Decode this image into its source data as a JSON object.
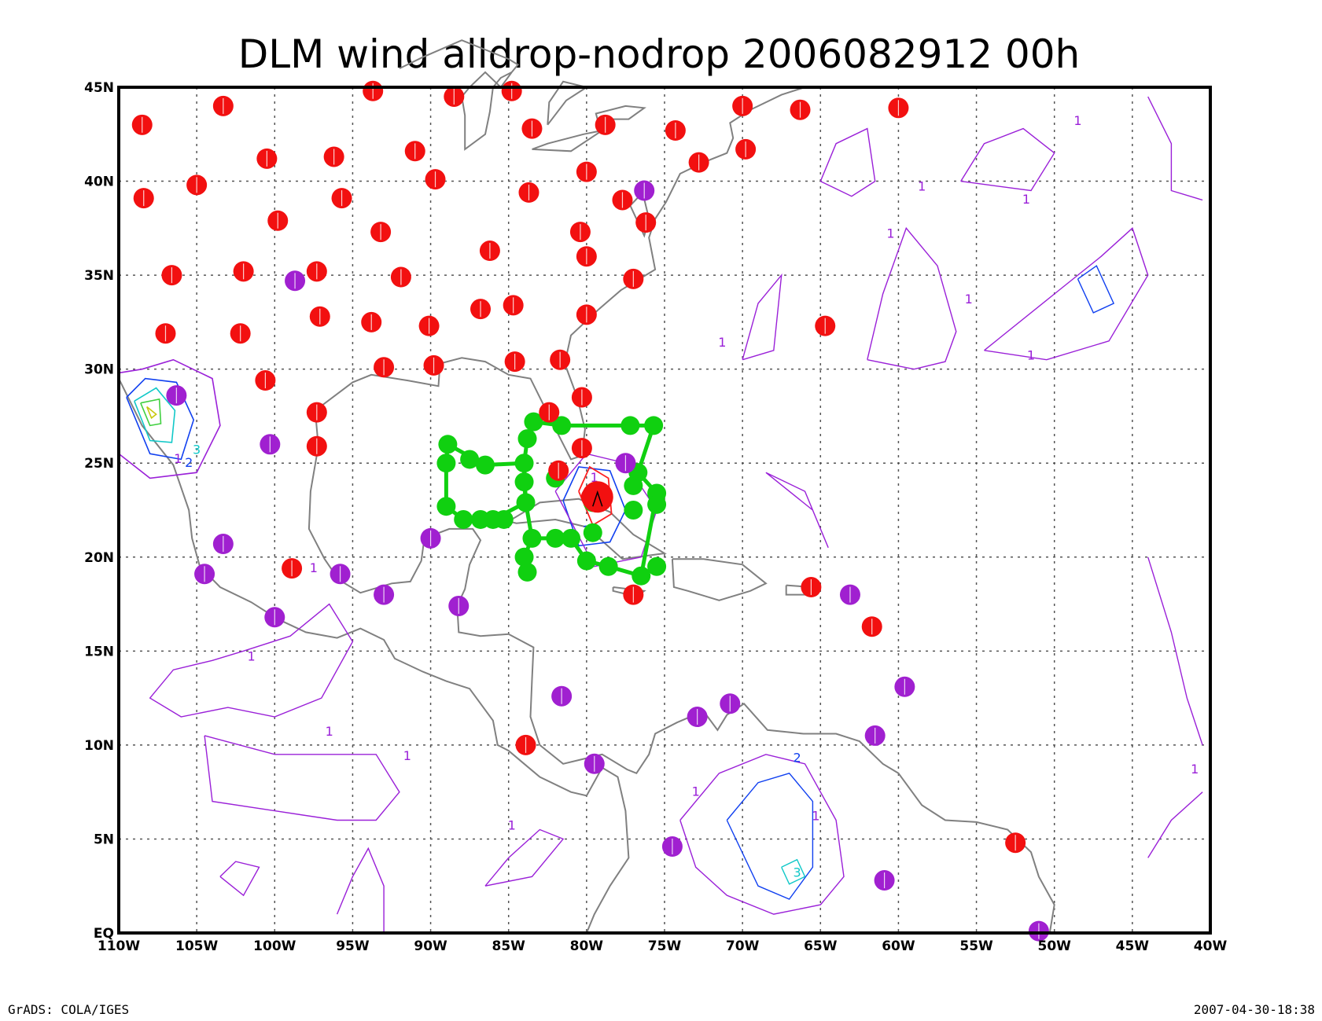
{
  "title": "DLM wind alldrop-nodrop 2006082912 00h",
  "footer_left": "GrADS: COLA/IGES",
  "footer_right": "2007-04-30-18:38",
  "map": {
    "lon_range": [
      -110,
      -40
    ],
    "lat_range": [
      0,
      45
    ],
    "lon_ticks": [
      {
        "v": -110,
        "label": "110W"
      },
      {
        "v": -105,
        "label": "105W"
      },
      {
        "v": -100,
        "label": "100W"
      },
      {
        "v": -95,
        "label": "95W"
      },
      {
        "v": -90,
        "label": "90W"
      },
      {
        "v": -85,
        "label": "85W"
      },
      {
        "v": -80,
        "label": "80W"
      },
      {
        "v": -75,
        "label": "75W"
      },
      {
        "v": -70,
        "label": "70W"
      },
      {
        "v": -65,
        "label": "65W"
      },
      {
        "v": -60,
        "label": "60W"
      },
      {
        "v": -55,
        "label": "55W"
      },
      {
        "v": -50,
        "label": "50W"
      },
      {
        "v": -45,
        "label": "45W"
      },
      {
        "v": -40,
        "label": "40W"
      }
    ],
    "lat_ticks": [
      {
        "v": 45,
        "label": "45N"
      },
      {
        "v": 40,
        "label": "40N"
      },
      {
        "v": 35,
        "label": "35N"
      },
      {
        "v": 30,
        "label": "30N"
      },
      {
        "v": 25,
        "label": "25N"
      },
      {
        "v": 20,
        "label": "20N"
      },
      {
        "v": 15,
        "label": "15N"
      },
      {
        "v": 10,
        "label": "10N"
      },
      {
        "v": 5,
        "label": "5N"
      },
      {
        "v": 0,
        "label": "EQ"
      }
    ],
    "colors": {
      "red_station": "#f21010",
      "purple_station": "#a020d0",
      "green_drop": "#10d010",
      "contour_1": "#9a20d8",
      "contour_2": "#1040f0",
      "contour_3": "#10c8c8",
      "contour_4": "#40d040",
      "contour_5": "#c8c810",
      "coast": "#808080",
      "grid": "#555555",
      "frame": "#000000"
    },
    "contour_labels": [
      {
        "lon": -106.2,
        "lat": 25.0,
        "text": "1"
      },
      {
        "lon": -105.0,
        "lat": 25.5,
        "text": "3"
      },
      {
        "lon": -105.5,
        "lat": 24.8,
        "text": "2"
      },
      {
        "lon": -58.5,
        "lat": 39.5,
        "text": "1"
      },
      {
        "lon": -60.5,
        "lat": 37.0,
        "text": "1"
      },
      {
        "lon": -55.5,
        "lat": 33.5,
        "text": "1"
      },
      {
        "lon": -51.5,
        "lat": 30.5,
        "text": "1"
      },
      {
        "lon": -51.8,
        "lat": 38.8,
        "text": "1"
      },
      {
        "lon": -84.8,
        "lat": 5.5,
        "text": "1"
      },
      {
        "lon": -91.5,
        "lat": 9.2,
        "text": "1"
      },
      {
        "lon": -101.5,
        "lat": 14.5,
        "text": "1"
      },
      {
        "lon": -96.5,
        "lat": 10.5,
        "text": "1"
      },
      {
        "lon": -65.3,
        "lat": 6.0,
        "text": "1"
      },
      {
        "lon": -66.5,
        "lat": 9.1,
        "text": "2"
      },
      {
        "lon": -73.0,
        "lat": 7.3,
        "text": "1"
      },
      {
        "lon": -97.5,
        "lat": 19.2,
        "text": "1"
      },
      {
        "lon": -80.0,
        "lat": 21.2,
        "text": "2"
      },
      {
        "lon": -41.0,
        "lat": 8.5,
        "text": "1"
      },
      {
        "lon": -66.5,
        "lat": 3.0,
        "text": "3"
      },
      {
        "lon": -79.5,
        "lat": 24.0,
        "text": "1"
      },
      {
        "lon": -48.5,
        "lat": 43.0,
        "text": "1"
      },
      {
        "lon": -71.3,
        "lat": 31.2,
        "text": "1"
      }
    ],
    "red_stations": [
      [
        -108.5,
        43.0
      ],
      [
        -103.3,
        44.0
      ],
      [
        -93.7,
        44.8
      ],
      [
        -88.5,
        44.5
      ],
      [
        -84.8,
        44.8
      ],
      [
        -83.5,
        42.8
      ],
      [
        -78.8,
        43.0
      ],
      [
        -74.3,
        42.7
      ],
      [
        -70.0,
        44.0
      ],
      [
        -66.3,
        43.8
      ],
      [
        -60.0,
        43.9
      ],
      [
        -69.8,
        41.7
      ],
      [
        -72.8,
        41.0
      ],
      [
        -100.5,
        41.2
      ],
      [
        -96.2,
        41.3
      ],
      [
        -91.0,
        41.6
      ],
      [
        -89.7,
        40.1
      ],
      [
        -80.0,
        40.5
      ],
      [
        -105.0,
        39.8
      ],
      [
        -108.4,
        39.1
      ],
      [
        -95.7,
        39.1
      ],
      [
        -83.7,
        39.4
      ],
      [
        -77.7,
        39.0
      ],
      [
        -99.8,
        37.9
      ],
      [
        -76.2,
        37.8
      ],
      [
        -93.2,
        37.3
      ],
      [
        -80.4,
        37.3
      ],
      [
        -86.2,
        36.3
      ],
      [
        -80.0,
        36.0
      ],
      [
        -106.6,
        35.0
      ],
      [
        -102.0,
        35.2
      ],
      [
        -97.3,
        35.2
      ],
      [
        -91.9,
        34.9
      ],
      [
        -77.0,
        34.8
      ],
      [
        -84.7,
        33.4
      ],
      [
        -86.8,
        33.2
      ],
      [
        -97.1,
        32.8
      ],
      [
        -93.8,
        32.5
      ],
      [
        -90.1,
        32.3
      ],
      [
        -80.0,
        32.9
      ],
      [
        -107.0,
        31.9
      ],
      [
        -102.2,
        31.9
      ],
      [
        -64.7,
        32.3
      ],
      [
        -93.0,
        30.1
      ],
      [
        -89.8,
        30.2
      ],
      [
        -84.6,
        30.4
      ],
      [
        -81.7,
        30.5
      ],
      [
        -100.6,
        29.4
      ],
      [
        -80.3,
        28.5
      ],
      [
        -97.3,
        27.7
      ],
      [
        -82.4,
        27.7
      ],
      [
        -97.3,
        25.9
      ],
      [
        -80.3,
        25.8
      ],
      [
        -81.8,
        24.6
      ],
      [
        -79.7,
        23.2
      ],
      [
        -98.9,
        19.4
      ],
      [
        -77.0,
        18.0
      ],
      [
        -65.6,
        18.4
      ],
      [
        -61.7,
        16.3
      ],
      [
        -83.9,
        10.0
      ],
      [
        -52.5,
        4.8
      ]
    ],
    "purple_stations": [
      [
        -76.3,
        39.5
      ],
      [
        -98.7,
        34.7
      ],
      [
        -106.3,
        28.6
      ],
      [
        -100.3,
        26.0
      ],
      [
        -77.5,
        25.0
      ],
      [
        -103.3,
        20.7
      ],
      [
        -104.5,
        19.1
      ],
      [
        -95.8,
        19.1
      ],
      [
        -90.0,
        21.0
      ],
      [
        -93.0,
        18.0
      ],
      [
        -88.2,
        17.4
      ],
      [
        -100.0,
        16.8
      ],
      [
        -63.1,
        18.0
      ],
      [
        -59.6,
        13.1
      ],
      [
        -81.6,
        12.6
      ],
      [
        -70.8,
        12.2
      ],
      [
        -72.9,
        11.5
      ],
      [
        -61.5,
        10.5
      ],
      [
        -79.5,
        9.0
      ],
      [
        -74.5,
        4.6
      ],
      [
        -60.9,
        2.8
      ],
      [
        -51.0,
        0.1
      ]
    ],
    "green_drops": [
      [
        -88.9,
        26.0
      ],
      [
        -86.5,
        24.9
      ],
      [
        -84.0,
        25.0
      ],
      [
        -84.0,
        24.0
      ],
      [
        -83.9,
        22.9
      ],
      [
        -86.0,
        22.0
      ],
      [
        -87.9,
        22.0
      ],
      [
        -89.0,
        22.7
      ],
      [
        -89.0,
        25.0
      ],
      [
        -83.4,
        27.2
      ],
      [
        -81.6,
        27.0
      ],
      [
        -77.2,
        27.0
      ],
      [
        -75.7,
        27.0
      ],
      [
        -77.5,
        25.0
      ],
      [
        -76.7,
        24.5
      ],
      [
        -77.0,
        23.8
      ],
      [
        -75.5,
        23.4
      ],
      [
        -79.6,
        22.9
      ],
      [
        -81.0,
        21.0
      ],
      [
        -82.0,
        21.0
      ],
      [
        -83.5,
        21.0
      ],
      [
        -84.0,
        20.0
      ],
      [
        -83.8,
        19.2
      ],
      [
        -80.0,
        19.8
      ],
      [
        -78.6,
        19.5
      ],
      [
        -76.5,
        19.0
      ],
      [
        -75.5,
        19.5
      ],
      [
        -77.0,
        22.5
      ],
      [
        -75.5,
        22.8
      ],
      [
        -79.6,
        21.3
      ],
      [
        -82.0,
        24.2
      ],
      [
        -83.8,
        26.3
      ],
      [
        -86.8,
        22.0
      ],
      [
        -85.3,
        22.0
      ],
      [
        -87.5,
        25.2
      ]
    ]
  }
}
